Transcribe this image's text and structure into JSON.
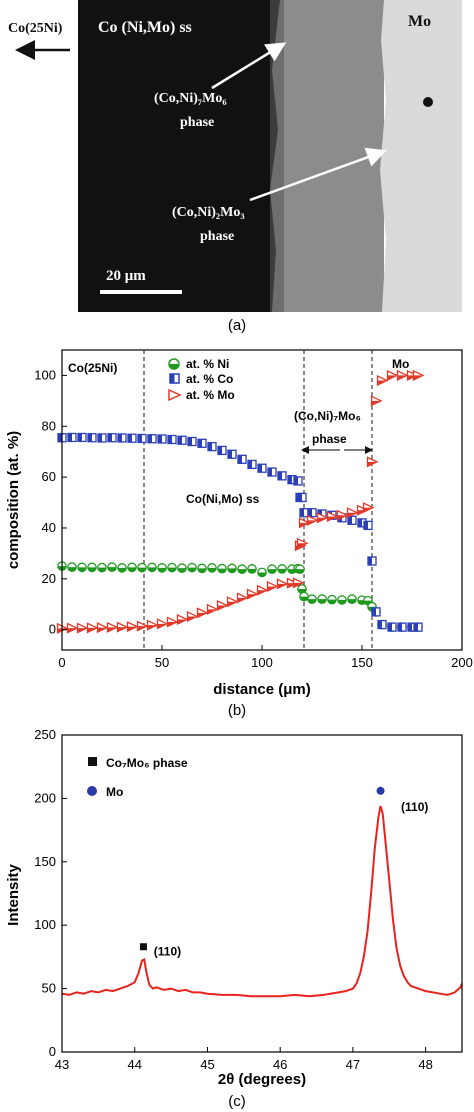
{
  "micrograph": {
    "left_label": "Co(25Ni)",
    "region_labels": {
      "ss": "Co (Ni,Mo) ss",
      "mo": "Mo",
      "phase_76_line1": "(Co,Ni)₇Mo₆",
      "phase_76_line2": "phase",
      "phase_23_line1": "(Co,Ni)₂Mo₃",
      "phase_23_line2": "phase"
    },
    "scale_bar": "20 μm",
    "panel_label": "(a)",
    "colors": {
      "ss": "#111111",
      "phase": "#8c8c8c",
      "mo": "#dadada"
    }
  },
  "chart_data": [
    {
      "type": "scatter",
      "panel_label": "(b)",
      "xlabel": "distance (μm)",
      "ylabel": "composition (at. %)",
      "xlim": [
        0,
        200
      ],
      "ylim": [
        -8,
        110
      ],
      "xticks": [
        0,
        50,
        100,
        150,
        200
      ],
      "yticks": [
        0,
        20,
        40,
        60,
        80,
        100
      ],
      "vlines_dashed": [
        41,
        121,
        155
      ],
      "legend_position": "top-left",
      "annotations": {
        "top_left": "Co(25Ni)",
        "mo": "Mo",
        "phase_line1": "(Co,Ni)₇Mo₆",
        "phase_line2": "phase",
        "ss": "Co(Ni,Mo) ss"
      },
      "series": [
        {
          "name": "at. % Ni",
          "marker": "half-circle",
          "color": "#1f9a1f",
          "x": [
            0,
            5,
            10,
            15,
            20,
            25,
            30,
            35,
            40,
            45,
            50,
            55,
            60,
            65,
            70,
            75,
            80,
            85,
            90,
            95,
            100,
            105,
            110,
            115,
            118,
            119,
            120,
            121,
            125,
            130,
            135,
            140,
            145,
            150,
            153,
            155,
            157,
            160,
            165,
            170,
            175,
            178
          ],
          "y": [
            25,
            24.6,
            24.5,
            24.5,
            24.4,
            24.6,
            24.3,
            24.5,
            24.4,
            24.5,
            24.3,
            24.4,
            24.2,
            24.4,
            24.1,
            24.3,
            24.0,
            24.1,
            23.8,
            23.9,
            22.5,
            23.8,
            23.9,
            23.8,
            24.0,
            23.8,
            16,
            13,
            12,
            12,
            11.8,
            11.7,
            12,
            11.6,
            11.4,
            9,
            7,
            2,
            1,
            1,
            1,
            1
          ]
        },
        {
          "name": "at. % Co",
          "marker": "half-square",
          "color": "#2a3fb8",
          "x": [
            0,
            5,
            10,
            15,
            20,
            25,
            30,
            35,
            40,
            45,
            50,
            55,
            60,
            65,
            70,
            75,
            80,
            85,
            90,
            95,
            100,
            105,
            110,
            115,
            118,
            119,
            120,
            121,
            125,
            130,
            135,
            140,
            145,
            150,
            153,
            155,
            157,
            160,
            165,
            170,
            175,
            178
          ],
          "y": [
            75.5,
            75.6,
            75.6,
            75.5,
            75.4,
            75.5,
            75.4,
            75.3,
            75.2,
            75.1,
            75.0,
            74.8,
            74.5,
            74.0,
            73.3,
            72.0,
            70.5,
            69.0,
            67.0,
            65.0,
            63.5,
            62.0,
            60.5,
            59.0,
            58.5,
            52,
            52,
            46,
            46,
            45.5,
            45,
            44,
            43,
            42,
            41,
            27,
            7,
            2,
            1,
            1,
            1,
            1
          ]
        },
        {
          "name": "at. % Mo",
          "marker": "triangle-right",
          "color": "#e23a2a",
          "x": [
            0,
            5,
            10,
            15,
            20,
            25,
            30,
            35,
            40,
            45,
            50,
            55,
            60,
            65,
            70,
            75,
            80,
            85,
            90,
            95,
            100,
            105,
            110,
            115,
            118,
            119,
            120,
            121,
            125,
            130,
            135,
            140,
            145,
            150,
            153,
            155,
            157,
            160,
            165,
            170,
            175,
            178
          ],
          "y": [
            0.5,
            0.6,
            0.6,
            0.7,
            0.8,
            0.9,
            1.0,
            1.2,
            1.4,
            1.8,
            2.3,
            3.0,
            4.0,
            5.2,
            6.6,
            8.0,
            9.5,
            11.0,
            12.5,
            14.0,
            15.5,
            17.0,
            18.0,
            18.3,
            18.4,
            33,
            34,
            42,
            43,
            44,
            44.5,
            45,
            46,
            47,
            48,
            66,
            90,
            98,
            100,
            100,
            100,
            100
          ]
        }
      ]
    },
    {
      "type": "line",
      "panel_label": "(c)",
      "xlabel": "2θ (degrees)",
      "ylabel": "Intensity",
      "xlim": [
        43,
        48.5
      ],
      "ylim": [
        0,
        250
      ],
      "xticks": [
        43,
        44,
        45,
        46,
        47,
        48
      ],
      "yticks": [
        0,
        50,
        100,
        150,
        200,
        250
      ],
      "legend_position": "top-left",
      "legend": [
        {
          "label": "Co₇Mo₆ phase",
          "marker": "square",
          "color": "#111111"
        },
        {
          "label": "Mo",
          "marker": "circle",
          "color": "#2b3aa8"
        }
      ],
      "peak_labels": [
        {
          "text": "(110)",
          "x": 44.45,
          "y": 76,
          "marker": "square",
          "marker_x": 44.12,
          "marker_y": 83
        },
        {
          "text": "(110)",
          "x": 47.85,
          "y": 190,
          "marker": "circle",
          "marker_x": 47.38,
          "marker_y": 206
        }
      ],
      "series": [
        {
          "name": "",
          "color": "#e8231c",
          "x": [
            43.0,
            43.1,
            43.2,
            43.3,
            43.4,
            43.5,
            43.6,
            43.7,
            43.8,
            43.9,
            44.0,
            44.05,
            44.1,
            44.13,
            44.16,
            44.2,
            44.25,
            44.3,
            44.4,
            44.5,
            44.6,
            44.7,
            44.8,
            44.9,
            45.0,
            45.2,
            45.4,
            45.6,
            45.8,
            46.0,
            46.2,
            46.4,
            46.6,
            46.8,
            46.9,
            47.0,
            47.05,
            47.1,
            47.15,
            47.2,
            47.25,
            47.3,
            47.35,
            47.38,
            47.41,
            47.45,
            47.5,
            47.55,
            47.6,
            47.65,
            47.7,
            47.75,
            47.8,
            47.9,
            48.0,
            48.1,
            48.2,
            48.3,
            48.4,
            48.48,
            48.5
          ],
          "y": [
            46,
            45,
            47,
            46,
            48,
            47,
            49,
            48,
            50,
            52,
            55,
            62,
            72,
            73,
            63,
            53,
            50,
            51,
            49,
            50,
            48,
            49,
            47,
            47,
            46,
            45,
            45,
            44,
            44,
            44,
            45,
            44,
            45,
            47,
            48,
            50,
            54,
            62,
            75,
            95,
            125,
            160,
            185,
            194,
            188,
            165,
            135,
            105,
            82,
            68,
            60,
            55,
            52,
            50,
            48,
            47,
            46,
            45,
            47,
            51,
            54
          ]
        }
      ]
    }
  ]
}
